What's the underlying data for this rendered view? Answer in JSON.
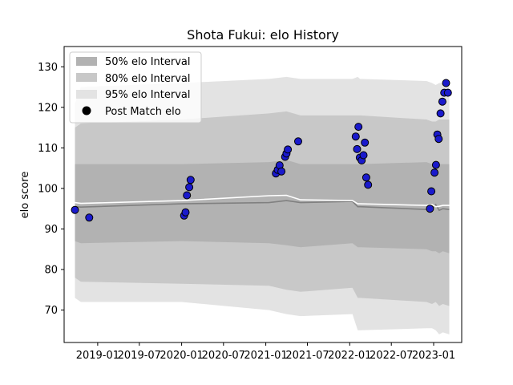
{
  "chart_data": {
    "type": "scatter",
    "title": "Shota Fukui: elo History",
    "xlabel": "",
    "ylabel": "elo score",
    "x_tick_labels": [
      "2019-01",
      "2019-07",
      "2020-01",
      "2020-07",
      "2021-01",
      "2021-07",
      "2022-01",
      "2022-07",
      "2023-01"
    ],
    "x_ticks": [
      "2019-01-01",
      "2019-07-01",
      "2020-01-01",
      "2020-07-01",
      "2021-01-01",
      "2021-07-01",
      "2022-01-01",
      "2022-07-01",
      "2023-01-01"
    ],
    "xlim": [
      "2018-08-08",
      "2023-05-03"
    ],
    "ylim": [
      62,
      135
    ],
    "y_ticks": [
      70,
      80,
      90,
      100,
      110,
      120,
      130
    ],
    "grid": false,
    "legend_position": "top-left",
    "legend": [
      {
        "label": "50% elo Interval",
        "color": "#b2b2b2"
      },
      {
        "label": "80% elo Interval",
        "color": "#c8c8c8"
      },
      {
        "label": "95% elo Interval",
        "color": "#e3e3e3"
      },
      {
        "label": "Post Match elo",
        "color": "#000000"
      }
    ],
    "colors": {
      "point_fill": "#1a1acc",
      "point_edge": "#000000",
      "band_50": "#b2b2b2",
      "band_80": "#c8c8c8",
      "band_95": "#e3e3e3",
      "mean_line": "#ffffff",
      "median_line": "#808080"
    },
    "bands": {
      "x": [
        "2018-09-24",
        "2018-10-20",
        "2020-01-01",
        "2021-01-15",
        "2021-04-01",
        "2021-06-01",
        "2022-01-13",
        "2022-02-05",
        "2022-02-15",
        "2022-12-01",
        "2022-12-25",
        "2023-01-10",
        "2023-01-25",
        "2023-02-10",
        "2023-03-10"
      ],
      "lo95": [
        73,
        72,
        72,
        70,
        69,
        68.5,
        69,
        65,
        65,
        65.5,
        65.5,
        65,
        64,
        64.5,
        64
      ],
      "hi95": [
        121,
        125,
        126,
        127,
        127.5,
        127,
        127,
        127.5,
        127,
        126.5,
        126,
        125.5,
        126,
        126,
        126
      ],
      "lo80": [
        78,
        77,
        76.5,
        76,
        75,
        74.5,
        75.5,
        73,
        73,
        72,
        71.5,
        72,
        71,
        71.5,
        71
      ],
      "hi80": [
        115,
        116,
        117,
        118.5,
        119,
        118,
        118,
        118,
        118,
        117,
        116.5,
        116.5,
        117,
        117,
        117
      ],
      "lo50": [
        87,
        86.5,
        87,
        86.5,
        86,
        85.5,
        86.5,
        85.5,
        85.5,
        85,
        84.5,
        84.5,
        84,
        84.5,
        84
      ],
      "hi50": [
        106,
        106,
        106,
        106.5,
        107,
        106,
        106,
        106,
        106,
        106.5,
        106,
        106,
        106,
        106,
        106
      ],
      "mean": [
        96.5,
        96.3,
        97,
        98.2,
        98.3,
        97.2,
        97,
        96.2,
        96.2,
        95.8,
        96,
        95.5,
        95.6,
        95.8,
        95.8
      ],
      "median": [
        95.5,
        95.4,
        96.2,
        96.5,
        97,
        96.5,
        96.8,
        95.5,
        95.5,
        94.8,
        95,
        96,
        94.6,
        95,
        94.8
      ]
    },
    "points": [
      {
        "x": "2018-09-24",
        "y": 94.7
      },
      {
        "x": "2018-11-25",
        "y": 92.8
      },
      {
        "x": "2020-01-12",
        "y": 93.3
      },
      {
        "x": "2020-01-18",
        "y": 94.1
      },
      {
        "x": "2020-01-24",
        "y": 98.3
      },
      {
        "x": "2020-02-03",
        "y": 100.3
      },
      {
        "x": "2020-02-09",
        "y": 102.1
      },
      {
        "x": "2021-02-14",
        "y": 103.7
      },
      {
        "x": "2021-02-22",
        "y": 104.6
      },
      {
        "x": "2021-03-02",
        "y": 105.7
      },
      {
        "x": "2021-03-10",
        "y": 104.2
      },
      {
        "x": "2021-03-26",
        "y": 107.8
      },
      {
        "x": "2021-04-01",
        "y": 108.6
      },
      {
        "x": "2021-04-07",
        "y": 109.6
      },
      {
        "x": "2021-05-22",
        "y": 111.6
      },
      {
        "x": "2022-01-27",
        "y": 112.8
      },
      {
        "x": "2022-02-02",
        "y": 109.7
      },
      {
        "x": "2022-02-08",
        "y": 115.2
      },
      {
        "x": "2022-02-14",
        "y": 107.6
      },
      {
        "x": "2022-02-22",
        "y": 106.9
      },
      {
        "x": "2022-03-02",
        "y": 108.2
      },
      {
        "x": "2022-03-08",
        "y": 111.3
      },
      {
        "x": "2022-03-14",
        "y": 102.7
      },
      {
        "x": "2022-03-22",
        "y": 100.9
      },
      {
        "x": "2022-12-16",
        "y": 95.0
      },
      {
        "x": "2022-12-22",
        "y": 99.3
      },
      {
        "x": "2023-01-05",
        "y": 103.9
      },
      {
        "x": "2023-01-11",
        "y": 105.8
      },
      {
        "x": "2023-01-17",
        "y": 113.3
      },
      {
        "x": "2023-01-23",
        "y": 112.2
      },
      {
        "x": "2023-01-31",
        "y": 118.5
      },
      {
        "x": "2023-02-08",
        "y": 121.4
      },
      {
        "x": "2023-02-16",
        "y": 123.6
      },
      {
        "x": "2023-02-24",
        "y": 126.0
      },
      {
        "x": "2023-03-04",
        "y": 123.6
      }
    ]
  }
}
